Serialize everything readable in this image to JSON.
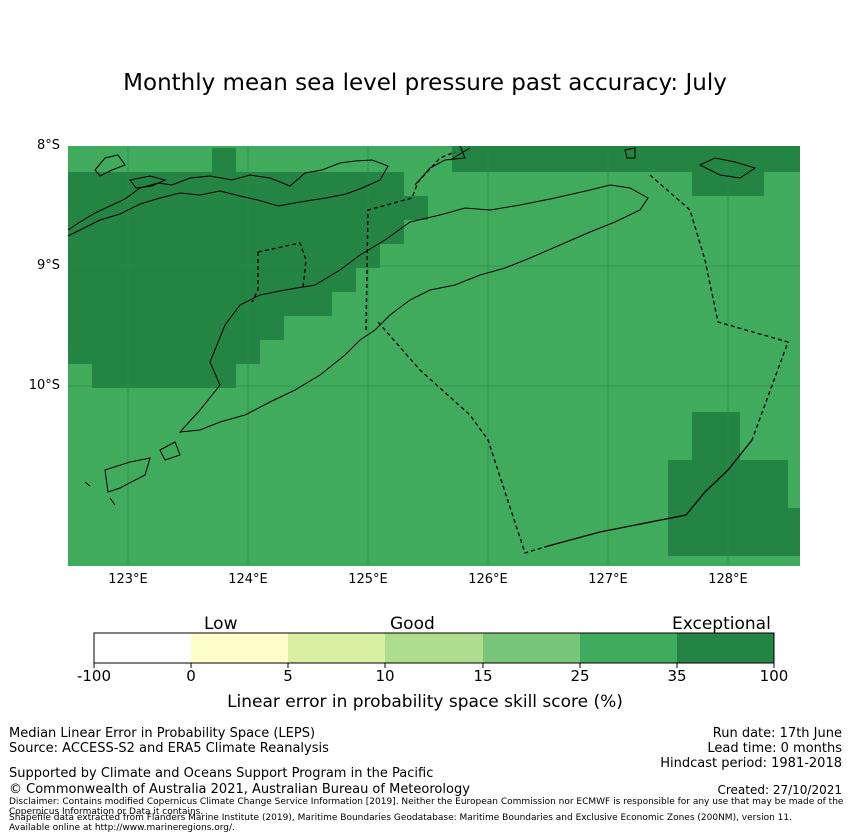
{
  "title": "Monthly mean sea level pressure past accuracy: July",
  "map": {
    "lat_labels": [
      "8°S",
      "9°S",
      "10°S"
    ],
    "lon_labels": [
      "123°E",
      "124°E",
      "125°E",
      "126°E",
      "127°E",
      "128°E"
    ],
    "extent": {
      "lon_min": 122.5,
      "lon_max": 128.6,
      "lat_min": -11.5,
      "lat_max": -8.0
    },
    "colors": {
      "good_high": "#41ab5d",
      "exceptional": "#238443"
    }
  },
  "colorbar": {
    "categories": [
      "Low",
      "Good",
      "Exceptional"
    ],
    "tick_labels": [
      "-100",
      "0",
      "5",
      "10",
      "15",
      "25",
      "35",
      "100"
    ],
    "colors": [
      "#ffffff",
      "#ffffcc",
      "#d9f0a3",
      "#addd8e",
      "#78c679",
      "#41ab5d",
      "#238443"
    ],
    "label": "Linear error in probability space skill score (%)"
  },
  "footer": {
    "method": "Median Linear Error in Probability Space (LEPS)",
    "source": "Source: ACCESS-S2 and ERA5 Climate Reanalysis",
    "run_date": "Run date: 17th June",
    "lead_time": "Lead time: 0 months",
    "hindcast": "Hindcast period: 1981-2018",
    "support": "Supported by Climate and Oceans Support Program in the Pacific",
    "copyright": "© Commonwealth of Australia 2021, Australian Bureau of Meteorology",
    "created": "Created: 27/10/2021",
    "disclaimer": "Disclaimer: Contains modified Copernicus Climate Change Service Information [2019]. Neither the European Commission nor ECMWF is responsible for any use that may be made of the Copernicus Information or Data it contains.",
    "shapefile": "Shapefile data extracted from Flanders Marine Institute (2019), Maritime Boundaries Geodatabase: Maritime Boundaries and Exclusive Economic Zones (200NM), version 11. Available online at http://www.marineregions.org/."
  }
}
